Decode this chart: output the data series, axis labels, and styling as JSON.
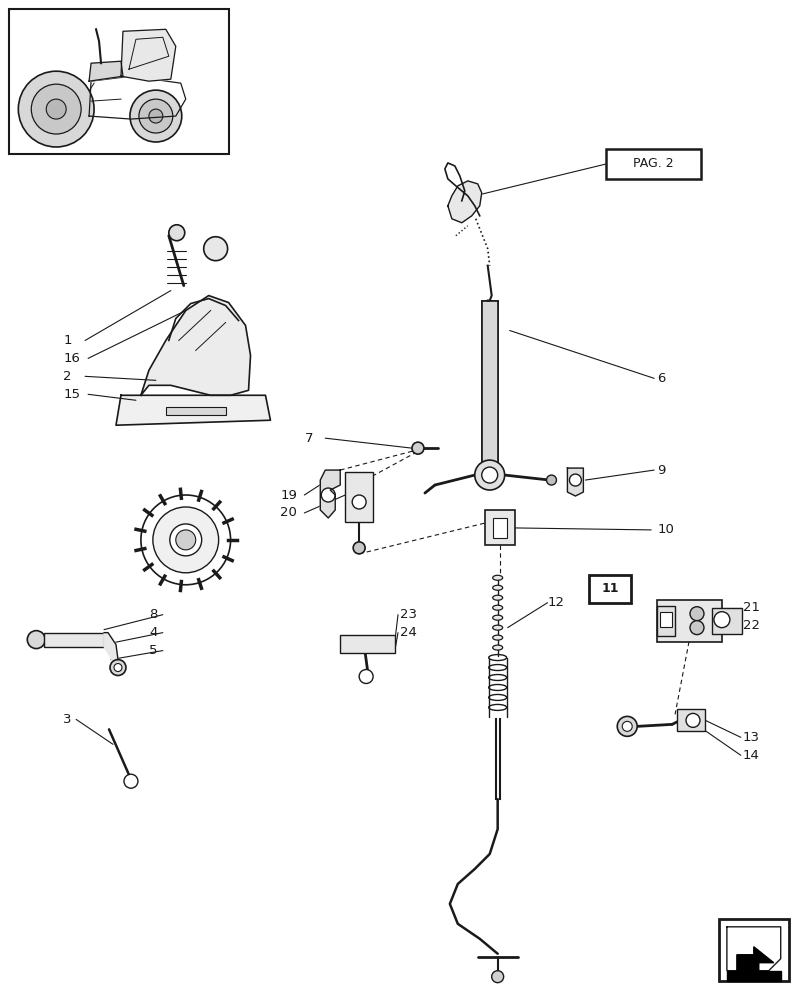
{
  "bg_color": "#ffffff",
  "line_color": "#1a1a1a",
  "fig_width": 8.08,
  "fig_height": 10.0,
  "dpi": 100
}
